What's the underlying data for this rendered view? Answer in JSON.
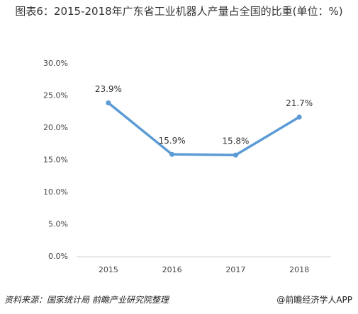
{
  "chart_data": {
    "type": "line",
    "title": "图表6：2015-2018年广东省工业机器人产量占全国的比重(单位：%)",
    "categories": [
      "2015",
      "2016",
      "2017",
      "2018"
    ],
    "series": [
      {
        "name": "比重",
        "color": "#5b9bd5",
        "values": [
          23.9,
          15.9,
          15.8,
          21.7
        ],
        "value_labels": [
          "23.9%",
          "15.9%",
          "15.8%",
          "21.7%"
        ]
      }
    ],
    "ylim": [
      0,
      30
    ],
    "yticks": [
      {
        "value": 0,
        "label": "0.0%"
      },
      {
        "value": 5,
        "label": "5.0%"
      },
      {
        "value": 10,
        "label": "10.0%"
      },
      {
        "value": 15,
        "label": "15.0%"
      },
      {
        "value": 20,
        "label": "20.0%"
      },
      {
        "value": 25,
        "label": "25.0%"
      },
      {
        "value": 30,
        "label": "30.0%"
      }
    ],
    "source": "资料来源：国家统计局 前瞻产业研究院整理",
    "credit": "@前瞻经济学人APP"
  }
}
